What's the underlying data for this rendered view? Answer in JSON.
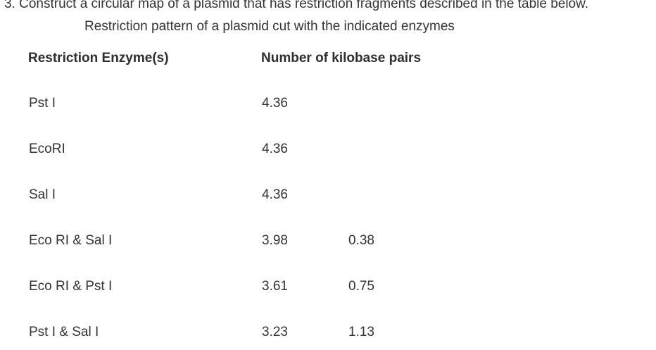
{
  "question": "3. Construct a circular map of a plasmid that has restriction fragments described in the table below.",
  "table": {
    "caption": "Restriction pattern of a plasmid cut with the indicated enzymes",
    "headers": [
      "Restriction Enzyme(s)",
      "Number of kilobase pairs"
    ],
    "rows": [
      {
        "enzyme": "Pst I",
        "fragments": [
          "4.36",
          ""
        ]
      },
      {
        "enzyme": "EcoRI",
        "fragments": [
          "4.36",
          ""
        ]
      },
      {
        "enzyme": "Sal I",
        "fragments": [
          "4.36",
          ""
        ]
      },
      {
        "enzyme": "Eco RI & Sal I",
        "fragments": [
          "3.98",
          "0.38"
        ]
      },
      {
        "enzyme": "Eco RI & Pst I",
        "fragments": [
          "3.61",
          "0.75"
        ]
      },
      {
        "enzyme": "Pst I & Sal I",
        "fragments": [
          "3.23",
          "1.13"
        ]
      }
    ]
  }
}
